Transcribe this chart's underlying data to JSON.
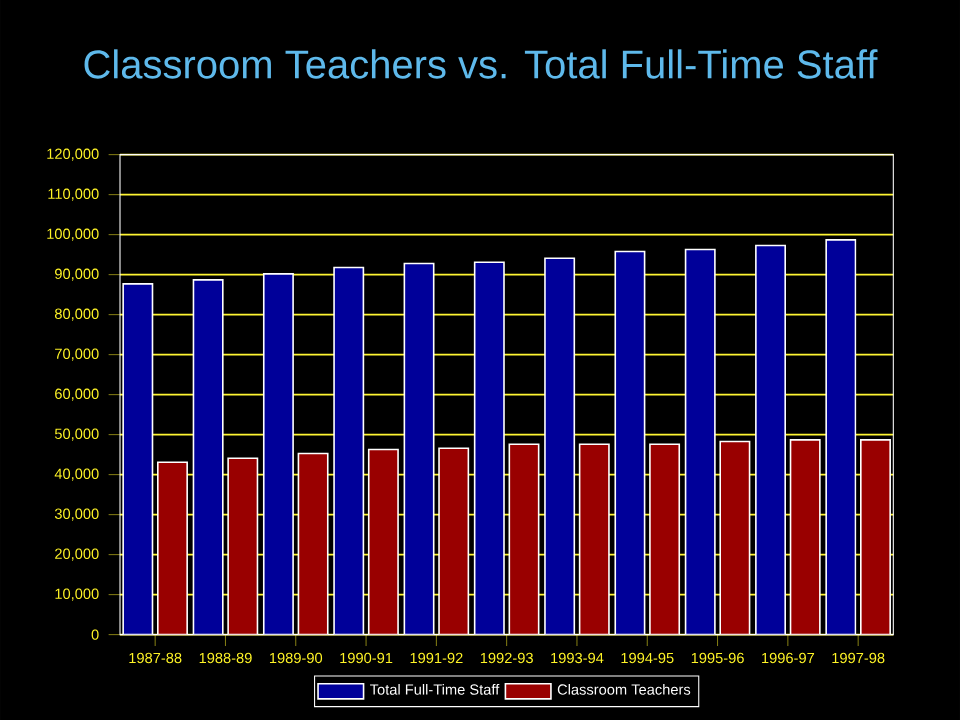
{
  "chart_data": {
    "type": "bar",
    "title": "Classroom Teachers vs. Total Full-Time Staff",
    "categories": [
      "1987-88",
      "1988-89",
      "1989-90",
      "1990-91",
      "1991-92",
      "1992-93",
      "1993-94",
      "1994-95",
      "1995-96",
      "1996-97",
      "1997-98"
    ],
    "series": [
      {
        "name": "Total Full-Time Staff",
        "color": "#000099",
        "values": [
          87700,
          88700,
          90200,
          91800,
          92800,
          93100,
          94100,
          95800,
          96300,
          97300,
          98700
        ]
      },
      {
        "name": "Classroom Teachers",
        "color": "#990000",
        "values": [
          43100,
          44100,
          45300,
          46300,
          46600,
          47600,
          47600,
          47600,
          48300,
          48700,
          48700
        ]
      }
    ],
    "ylim": [
      0,
      120000
    ],
    "yticks": [
      0,
      {
        "value": 10000,
        "label": "10,000"
      },
      {
        "value": 20000,
        "label": "20,000"
      },
      {
        "value": 30000,
        "label": "30,000"
      },
      {
        "value": 40000,
        "label": "40,000"
      },
      {
        "value": 50000,
        "label": "50,000"
      },
      {
        "value": 60000,
        "label": "60,000"
      },
      {
        "value": 70000,
        "label": "70,000"
      },
      {
        "value": 80000,
        "label": "80,000"
      },
      {
        "value": 90000,
        "label": "90,000"
      },
      {
        "value": 100000,
        "label": "100,000"
      },
      {
        "value": 110000,
        "label": "110,000"
      },
      {
        "value": 120000,
        "label": "120,000"
      }
    ],
    "grid": "y",
    "legend": "bottom"
  }
}
